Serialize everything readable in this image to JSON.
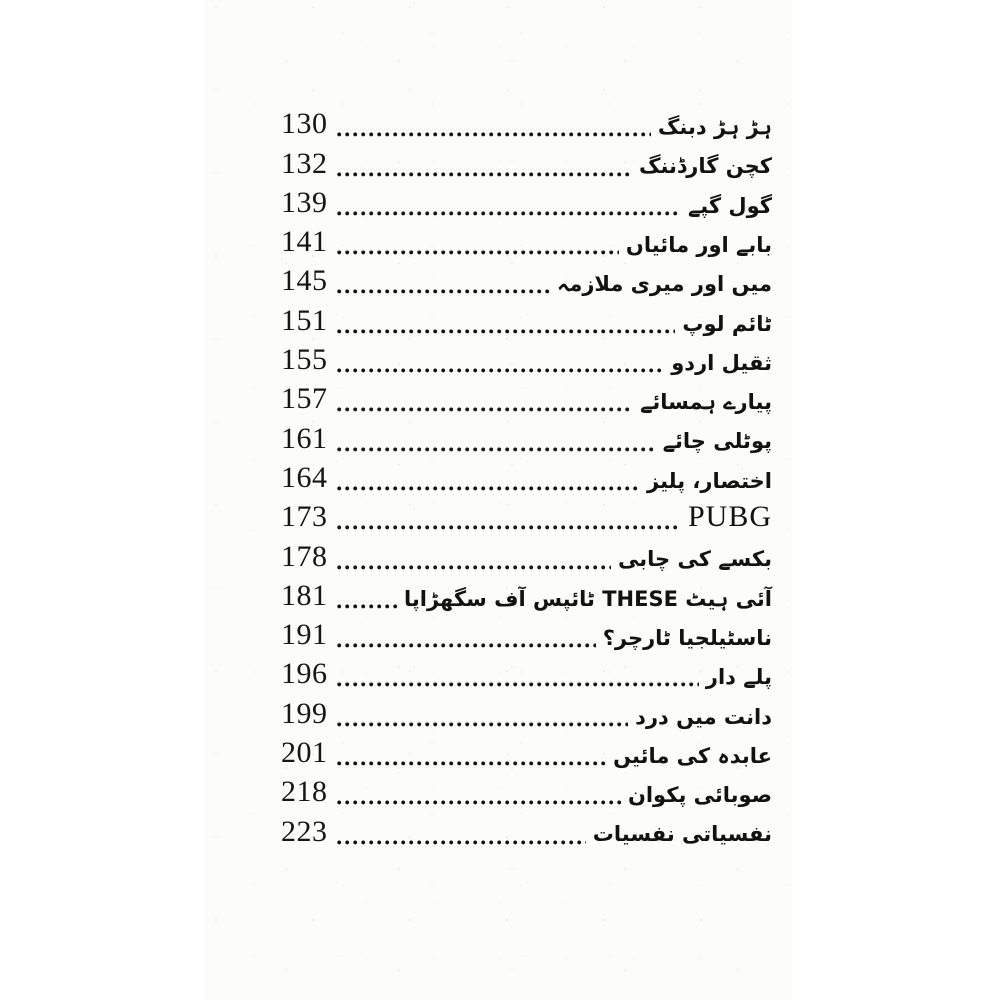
{
  "document": {
    "kind": "book-table-of-contents-scan",
    "language": "Urdu",
    "colors": {
      "ink": "#161616",
      "paper": "#fcfcfb",
      "frame": "#ffffff"
    }
  },
  "toc": {
    "entries": [
      {
        "title": "ہڑ ہڑ دبنگ",
        "page_number": "130"
      },
      {
        "title": "کچن گارڈننگ",
        "page_number": "132"
      },
      {
        "title": "گول گپے",
        "page_number": "139"
      },
      {
        "title": "بابے اور مائیاں",
        "page_number": "141"
      },
      {
        "title": "میں اور میری ملازمہ",
        "page_number": "145"
      },
      {
        "title": "ٹائم لوپ",
        "page_number": "151"
      },
      {
        "title": "ثقیل اردو",
        "page_number": "155"
      },
      {
        "title": "پیارے ہمسائے",
        "page_number": "157"
      },
      {
        "title": "پوٹلی چائے",
        "page_number": "161"
      },
      {
        "title": "اختصار، پلیز",
        "page_number": "164"
      },
      {
        "title": "PUBG",
        "page_number": "173"
      },
      {
        "title": "بکسے کی چابی",
        "page_number": "178"
      },
      {
        "title": "آئی ہیٹ THESE ٹائپس آف سگھڑاپا",
        "page_number": "181"
      },
      {
        "title": "ناسٹیلجیا ٹارچر؟",
        "page_number": "191"
      },
      {
        "title": "پلے دار",
        "page_number": "196"
      },
      {
        "title": "دانت میں درد",
        "page_number": "199"
      },
      {
        "title": "عابدہ کی مائیں",
        "page_number": "201"
      },
      {
        "title": "صوبائی پکوان",
        "page_number": "218"
      },
      {
        "title": "نفسیاتی نفسیات",
        "page_number": "223"
      }
    ]
  }
}
